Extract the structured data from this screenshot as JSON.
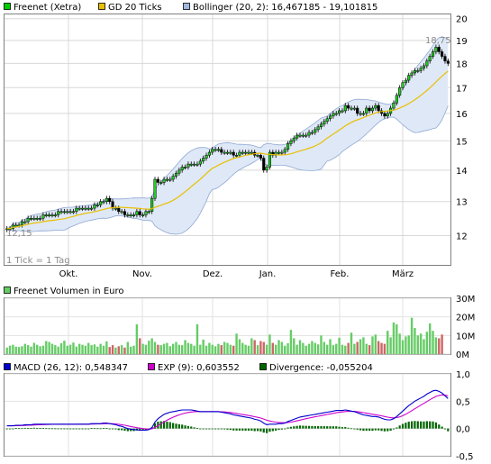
{
  "chart_data": [
    {
      "type": "candlestick",
      "legend": [
        {
          "label": "Freenet (Xetra)",
          "color": "#00cc00"
        },
        {
          "label": "GD 20 Ticks",
          "color": "#e8c000"
        },
        {
          "label": "Bollinger (20, 2): 16,467185 - 19,101815",
          "color": "#9fb8e0"
        }
      ],
      "x_labels": [
        "Okt.",
        "Nov.",
        "Dez.",
        "Jan.",
        "Feb.",
        "März"
      ],
      "y_ticks": [
        "12",
        "13",
        "14",
        "15",
        "16",
        "17",
        "18",
        "19",
        "20"
      ],
      "ylim": [
        11.2,
        20.2
      ],
      "scale": "log",
      "annotations": {
        "low": "12,15",
        "high": "18,75",
        "tick_note": "1 Tick = 1 Tag"
      },
      "close": [
        12.2,
        12.2,
        12.3,
        12.3,
        12.3,
        12.4,
        12.4,
        12.5,
        12.5,
        12.5,
        12.5,
        12.5,
        12.6,
        12.6,
        12.6,
        12.6,
        12.6,
        12.7,
        12.7,
        12.7,
        12.7,
        12.7,
        12.7,
        12.8,
        12.8,
        12.8,
        12.8,
        12.8,
        12.8,
        12.9,
        12.9,
        13.0,
        13.0,
        13.1,
        13.0,
        12.8,
        12.8,
        12.7,
        12.7,
        12.6,
        12.6,
        12.6,
        12.6,
        12.7,
        12.6,
        12.6,
        12.7,
        12.7,
        13.1,
        13.7,
        13.6,
        13.6,
        13.7,
        13.7,
        13.7,
        13.8,
        13.9,
        14.0,
        14.1,
        14.1,
        14.2,
        14.2,
        14.2,
        14.2,
        14.3,
        14.4,
        14.5,
        14.6,
        14.7,
        14.7,
        14.7,
        14.6,
        14.6,
        14.6,
        14.6,
        14.5,
        14.5,
        14.6,
        14.6,
        14.6,
        14.6,
        14.6,
        14.5,
        14.5,
        14.4,
        14.0,
        14.1,
        14.6,
        14.5,
        14.6,
        14.6,
        14.6,
        14.7,
        14.9,
        15.0,
        15.1,
        15.2,
        15.2,
        15.2,
        15.2,
        15.3,
        15.3,
        15.4,
        15.5,
        15.6,
        15.7,
        15.8,
        15.9,
        16.0,
        16.0,
        16.1,
        16.1,
        16.3,
        16.2,
        16.2,
        16.2,
        16.0,
        16.0,
        16.0,
        16.2,
        16.1,
        16.2,
        16.3,
        16.1,
        16.0,
        15.9,
        16.0,
        16.2,
        16.4,
        16.7,
        17.0,
        17.2,
        17.3,
        17.5,
        17.6,
        17.7,
        17.7,
        17.8,
        17.9,
        18.1,
        18.3,
        18.5,
        18.7,
        18.5,
        18.3,
        18.1,
        18.0
      ]
    },
    {
      "type": "bar",
      "legend": [
        {
          "label": "Freenet Volumen in Euro",
          "color": "#66cc66"
        }
      ],
      "y_ticks": [
        "0M",
        "10M",
        "20M",
        "30M"
      ],
      "ylim": [
        0,
        30
      ],
      "unit": "M EUR",
      "values": [
        3.5,
        4.5,
        5.0,
        4.0,
        3.8,
        4.2,
        5.5,
        4.8,
        4.0,
        6.0,
        5.0,
        4.2,
        4.5,
        7.0,
        6.5,
        5.5,
        4.8,
        4.0,
        5.8,
        7.2,
        4.5,
        5.0,
        6.2,
        4.0,
        5.5,
        5.0,
        4.5,
        6.0,
        4.8,
        5.2,
        4.0,
        5.5,
        4.5,
        6.8,
        3.8,
        4.8,
        3.5,
        4.2,
        4.8,
        3.5,
        6.5,
        4.0,
        4.5,
        16.0,
        8.5,
        5.5,
        5.0,
        7.2,
        8.5,
        6.5,
        5.0,
        4.8,
        5.5,
        6.0,
        4.2,
        5.5,
        6.5,
        5.0,
        4.8,
        7.5,
        6.0,
        5.5,
        4.5,
        16.0,
        5.0,
        7.8,
        4.5,
        6.0,
        5.0,
        4.2,
        5.5,
        4.8,
        6.5,
        6.0,
        5.0,
        4.5,
        11.0,
        8.0,
        6.0,
        5.0,
        4.5,
        8.5,
        7.5,
        4.8,
        7.0,
        6.5,
        5.0,
        10.5,
        6.0,
        5.0,
        7.5,
        6.5,
        4.5,
        5.8,
        13.0,
        8.5,
        5.0,
        7.5,
        6.0,
        4.5,
        5.5,
        7.0,
        6.0,
        5.2,
        10.0,
        6.5,
        5.0,
        8.0,
        4.8,
        5.5,
        8.8,
        5.0,
        4.5,
        6.0,
        11.5,
        5.5,
        6.5,
        8.0,
        9.0,
        5.5,
        4.8,
        9.5,
        10.5,
        7.0,
        6.0,
        5.5,
        12.5,
        9.0,
        17.0,
        16.0,
        11.0,
        7.5,
        9.5,
        10.0,
        19.5,
        14.0,
        10.0,
        11.0,
        8.0,
        12.0,
        16.5,
        12.5,
        9.0,
        8.5,
        10.5
      ]
    },
    {
      "type": "line",
      "legend": [
        {
          "label": "MACD (26, 12): 0,548347",
          "color": "#0000cc"
        },
        {
          "label": "EXP (9): 0,603552",
          "color": "#cc00cc"
        },
        {
          "label": "Divergence: -0,055204",
          "color": "#006600"
        }
      ],
      "y_ticks": [
        "-0,5",
        "0,0",
        "0,5",
        "1,0"
      ],
      "ylim": [
        -0.5,
        1.0
      ],
      "macd": [
        0.05,
        0.05,
        0.05,
        0.06,
        0.06,
        0.06,
        0.07,
        0.07,
        0.07,
        0.08,
        0.08,
        0.08,
        0.08,
        0.08,
        0.08,
        0.08,
        0.08,
        0.08,
        0.08,
        0.08,
        0.08,
        0.08,
        0.08,
        0.08,
        0.08,
        0.08,
        0.08,
        0.08,
        0.09,
        0.09,
        0.09,
        0.09,
        0.1,
        0.1,
        0.09,
        0.08,
        0.07,
        0.05,
        0.04,
        0.02,
        0.0,
        -0.01,
        -0.02,
        -0.02,
        -0.03,
        -0.03,
        -0.03,
        -0.02,
        0.02,
        0.12,
        0.18,
        0.22,
        0.26,
        0.28,
        0.3,
        0.31,
        0.32,
        0.33,
        0.34,
        0.34,
        0.34,
        0.34,
        0.33,
        0.32,
        0.31,
        0.31,
        0.31,
        0.31,
        0.31,
        0.31,
        0.31,
        0.3,
        0.29,
        0.28,
        0.27,
        0.25,
        0.24,
        0.23,
        0.22,
        0.21,
        0.2,
        0.19,
        0.17,
        0.16,
        0.14,
        0.1,
        0.07,
        0.08,
        0.08,
        0.08,
        0.09,
        0.09,
        0.1,
        0.13,
        0.15,
        0.17,
        0.19,
        0.21,
        0.22,
        0.23,
        0.24,
        0.25,
        0.26,
        0.27,
        0.28,
        0.29,
        0.3,
        0.31,
        0.32,
        0.33,
        0.33,
        0.33,
        0.34,
        0.33,
        0.32,
        0.31,
        0.29,
        0.27,
        0.25,
        0.24,
        0.23,
        0.22,
        0.22,
        0.21,
        0.19,
        0.17,
        0.16,
        0.16,
        0.18,
        0.22,
        0.27,
        0.32,
        0.37,
        0.42,
        0.46,
        0.5,
        0.53,
        0.56,
        0.59,
        0.63,
        0.66,
        0.69,
        0.7,
        0.68,
        0.65,
        0.6,
        0.55
      ]
    }
  ]
}
